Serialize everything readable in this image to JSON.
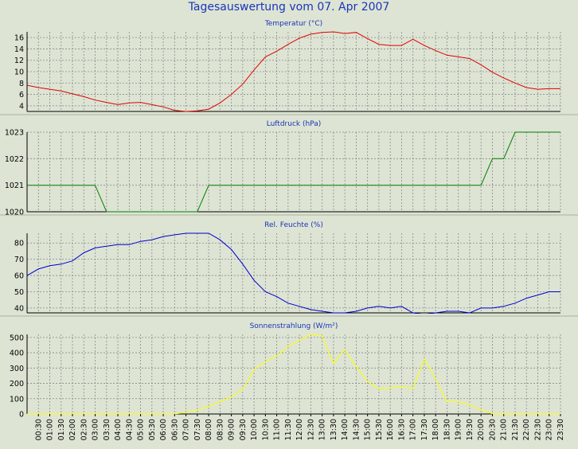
{
  "page": {
    "title": "Tagesauswertung vom 07. Apr 2007",
    "background": "#dde4d4"
  },
  "time_labels": [
    "00:30",
    "01:00",
    "01:30",
    "02:00",
    "02:30",
    "03:00",
    "03:30",
    "04:00",
    "04:30",
    "05:00",
    "05:30",
    "06:00",
    "06:30",
    "07:00",
    "07:30",
    "08:00",
    "08:30",
    "09:00",
    "09:30",
    "10:00",
    "10:30",
    "11:00",
    "11:30",
    "12:00",
    "12:30",
    "13:00",
    "13:30",
    "14:00",
    "14:30",
    "15:00",
    "15:30",
    "16:00",
    "16:30",
    "17:00",
    "17:30",
    "18:00",
    "18:30",
    "19:00",
    "19:30",
    "20:00",
    "20:30",
    "21:00",
    "21:30",
    "22:00",
    "22:30",
    "23:00",
    "23:30"
  ],
  "chart_data": [
    {
      "type": "line",
      "title": "Temperatur (°C)",
      "xlabel": "",
      "ylabel": "",
      "x_range": [
        "00:00",
        "23:30"
      ],
      "ylim": [
        3,
        17
      ],
      "yticks": [
        4,
        6,
        8,
        10,
        12,
        14,
        16
      ],
      "grid": true,
      "color": "#e00000",
      "points": [
        [
          "00:00",
          7.6
        ],
        [
          "00:30",
          7.2
        ],
        [
          "01:00",
          6.9
        ],
        [
          "01:30",
          6.6
        ],
        [
          "02:00",
          6.1
        ],
        [
          "02:30",
          5.6
        ],
        [
          "03:00",
          5.0
        ],
        [
          "03:30",
          4.6
        ],
        [
          "04:00",
          4.2
        ],
        [
          "04:30",
          4.5
        ],
        [
          "05:00",
          4.6
        ],
        [
          "05:30",
          4.2
        ],
        [
          "06:00",
          3.8
        ],
        [
          "06:30",
          3.2
        ],
        [
          "07:00",
          3.0
        ],
        [
          "07:30",
          3.1
        ],
        [
          "08:00",
          3.4
        ],
        [
          "08:30",
          4.5
        ],
        [
          "09:00",
          6.0
        ],
        [
          "09:30",
          7.8
        ],
        [
          "10:00",
          10.3
        ],
        [
          "10:30",
          12.6
        ],
        [
          "11:00",
          13.6
        ],
        [
          "11:30",
          14.8
        ],
        [
          "12:00",
          15.9
        ],
        [
          "12:30",
          16.6
        ],
        [
          "13:00",
          16.9
        ],
        [
          "13:30",
          17.0
        ],
        [
          "14:00",
          16.7
        ],
        [
          "14:30",
          16.9
        ],
        [
          "15:00",
          15.8
        ],
        [
          "15:30",
          14.8
        ],
        [
          "16:00",
          14.6
        ],
        [
          "16:30",
          14.6
        ],
        [
          "17:00",
          15.7
        ],
        [
          "17:30",
          14.6
        ],
        [
          "18:00",
          13.7
        ],
        [
          "18:30",
          12.9
        ],
        [
          "19:00",
          12.6
        ],
        [
          "19:30",
          12.3
        ],
        [
          "20:00",
          11.2
        ],
        [
          "20:30",
          9.9
        ],
        [
          "21:00",
          8.9
        ],
        [
          "21:30",
          8.0
        ],
        [
          "22:00",
          7.2
        ],
        [
          "22:30",
          6.9
        ],
        [
          "23:00",
          7.0
        ],
        [
          "23:30",
          7.0
        ],
        [
          "24:00",
          7.0
        ]
      ]
    },
    {
      "type": "line",
      "title": "Luftdruck (hPa)",
      "xlabel": "",
      "ylabel": "",
      "x_range": [
        "00:00",
        "23:30"
      ],
      "ylim": [
        1020,
        1023
      ],
      "yticks": [
        1020,
        1021,
        1022,
        1023
      ],
      "grid": true,
      "color": "#008000",
      "points": [
        [
          "00:00",
          1021
        ],
        [
          "03:00",
          1021
        ],
        [
          "03:30",
          1020
        ],
        [
          "07:30",
          1020
        ],
        [
          "08:00",
          1021
        ],
        [
          "20:00",
          1021
        ],
        [
          "20:30",
          1022
        ],
        [
          "21:00",
          1022
        ],
        [
          "21:30",
          1023
        ],
        [
          "24:00",
          1023
        ]
      ]
    },
    {
      "type": "line",
      "title": "Rel. Feuchte (%)",
      "xlabel": "",
      "ylabel": "",
      "x_range": [
        "00:00",
        "23:30"
      ],
      "ylim": [
        37,
        86
      ],
      "yticks": [
        40,
        50,
        60,
        70,
        80
      ],
      "grid": true,
      "color": "#0000cc",
      "points": [
        [
          "00:00",
          60
        ],
        [
          "00:30",
          64
        ],
        [
          "01:00",
          66
        ],
        [
          "01:30",
          67
        ],
        [
          "02:00",
          69
        ],
        [
          "02:30",
          74
        ],
        [
          "03:00",
          77
        ],
        [
          "03:30",
          78
        ],
        [
          "04:00",
          79
        ],
        [
          "04:30",
          79
        ],
        [
          "05:00",
          81
        ],
        [
          "05:30",
          82
        ],
        [
          "06:00",
          84
        ],
        [
          "06:30",
          85
        ],
        [
          "07:00",
          86
        ],
        [
          "07:30",
          86
        ],
        [
          "08:00",
          86
        ],
        [
          "08:30",
          82
        ],
        [
          "09:00",
          76
        ],
        [
          "09:30",
          67
        ],
        [
          "10:00",
          57
        ],
        [
          "10:30",
          50
        ],
        [
          "11:00",
          47
        ],
        [
          "11:30",
          43
        ],
        [
          "12:00",
          41
        ],
        [
          "12:30",
          39
        ],
        [
          "13:00",
          38
        ],
        [
          "13:30",
          37
        ],
        [
          "14:00",
          37
        ],
        [
          "14:30",
          38
        ],
        [
          "15:00",
          40
        ],
        [
          "15:30",
          41
        ],
        [
          "16:00",
          40
        ],
        [
          "16:30",
          41
        ],
        [
          "17:00",
          37
        ],
        [
          "17:30",
          36
        ],
        [
          "18:00",
          37
        ],
        [
          "18:30",
          38
        ],
        [
          "19:00",
          38
        ],
        [
          "19:30",
          37
        ],
        [
          "20:00",
          40
        ],
        [
          "20:30",
          40
        ],
        [
          "21:00",
          41
        ],
        [
          "21:30",
          43
        ],
        [
          "22:00",
          46
        ],
        [
          "22:30",
          48
        ],
        [
          "23:00",
          50
        ],
        [
          "23:30",
          50
        ],
        [
          "24:00",
          50
        ]
      ]
    },
    {
      "type": "line",
      "title": "Sonnenstrahlung (W/m²)",
      "xlabel": "",
      "ylabel": "",
      "x_range": [
        "00:00",
        "23:30"
      ],
      "ylim": [
        0,
        520
      ],
      "yticks": [
        0,
        100,
        200,
        300,
        400,
        500
      ],
      "grid": true,
      "color": "#ffff00",
      "points": [
        [
          "00:00",
          0
        ],
        [
          "06:00",
          0
        ],
        [
          "06:30",
          0
        ],
        [
          "07:00",
          10
        ],
        [
          "07:30",
          25
        ],
        [
          "08:00",
          50
        ],
        [
          "08:30",
          80
        ],
        [
          "09:00",
          110
        ],
        [
          "09:30",
          160
        ],
        [
          "10:00",
          290
        ],
        [
          "10:30",
          340
        ],
        [
          "11:00",
          380
        ],
        [
          "11:30",
          440
        ],
        [
          "12:00",
          480
        ],
        [
          "12:30",
          520
        ],
        [
          "13:00",
          510
        ],
        [
          "13:30",
          330
        ],
        [
          "14:00",
          420
        ],
        [
          "14:30",
          310
        ],
        [
          "15:00",
          210
        ],
        [
          "15:30",
          165
        ],
        [
          "16:00",
          170
        ],
        [
          "16:30",
          180
        ],
        [
          "17:00",
          165
        ],
        [
          "17:30",
          360
        ],
        [
          "18:00",
          230
        ],
        [
          "18:30",
          80
        ],
        [
          "19:00",
          80
        ],
        [
          "19:30",
          60
        ],
        [
          "20:00",
          30
        ],
        [
          "20:30",
          0
        ],
        [
          "24:00",
          0
        ]
      ]
    }
  ]
}
